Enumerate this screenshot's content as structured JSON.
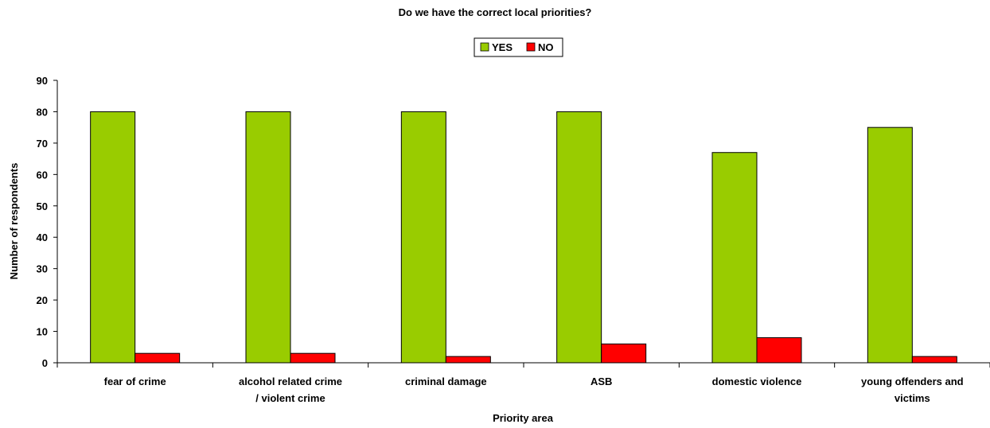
{
  "chart_data": {
    "type": "bar",
    "title": "Do we have the correct local priorities?",
    "xlabel": "Priority area",
    "ylabel": "Number of respondents",
    "ylim": [
      0,
      90
    ],
    "yticks": [
      "0",
      "10",
      "20",
      "30",
      "40",
      "50",
      "60",
      "70",
      "80",
      "90"
    ],
    "categories": [
      [
        "fear of crime"
      ],
      [
        "alcohol related crime",
        "/ violent crime"
      ],
      [
        "criminal damage"
      ],
      [
        "ASB"
      ],
      [
        "domestic violence"
      ],
      [
        "young offenders and",
        "victims"
      ]
    ],
    "series": [
      {
        "name": "YES",
        "color": "#99CC00",
        "values": [
          80,
          80,
          80,
          80,
          67,
          75
        ]
      },
      {
        "name": "NO",
        "color": "#FF0000",
        "values": [
          3,
          3,
          2,
          6,
          8,
          2
        ]
      }
    ],
    "grid": false,
    "legend_position": "top"
  }
}
